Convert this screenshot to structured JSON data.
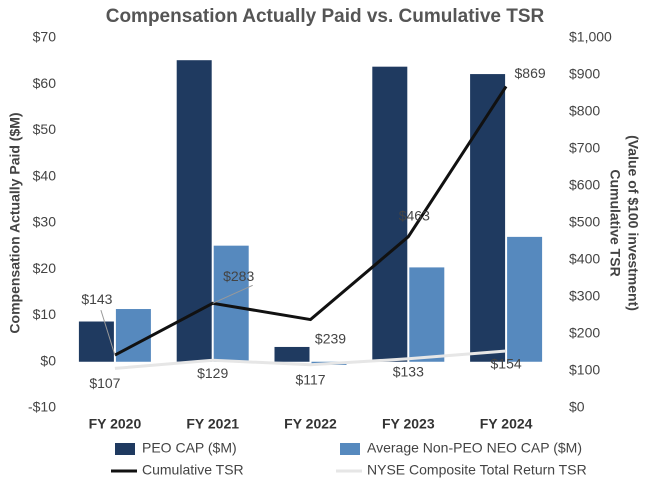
{
  "chart_data": {
    "type": "bar",
    "title": "Compensation Actually Paid vs. Cumulative TSR",
    "ylabel": "Compensation Actually Paid ($M)",
    "y2label": [
      "Cumulative TSR",
      "(Value of $100 investment)"
    ],
    "categories": [
      "FY 2020",
      "FY 2021",
      "FY 2022",
      "FY 2023",
      "FY 2024"
    ],
    "series": [
      {
        "name": "PEO CAP ($M)",
        "type": "bar",
        "color": "#1f3a60",
        "values": [
          8.7,
          65.2,
          3.2,
          63.8,
          62.2
        ]
      },
      {
        "name": "Average Non-PEO NEO CAP ($M)",
        "type": "bar",
        "color": "#5689be",
        "values": [
          11.4,
          25.1,
          -0.7,
          20.4,
          27.0
        ]
      },
      {
        "name": "Cumulative TSR",
        "type": "line",
        "axis": "y2",
        "color": "#111111",
        "values": [
          143,
          283,
          239,
          463,
          869
        ],
        "value_labels": [
          "$143",
          "$283",
          "$239",
          "$463",
          "$869"
        ]
      },
      {
        "name": "NYSE Composite Total Return TSR",
        "type": "line",
        "axis": "y2",
        "color": "#e6e6e6",
        "values": [
          107,
          129,
          117,
          133,
          154
        ],
        "value_labels": [
          "$107",
          "$129",
          "$117",
          "$133",
          "$154"
        ]
      }
    ],
    "ylim": [
      -10,
      70
    ],
    "yticks": [
      {
        "value": -10,
        "label": "-$10"
      },
      {
        "value": 0,
        "label": "$0"
      },
      {
        "value": 10,
        "label": "$10"
      },
      {
        "value": 20,
        "label": "$20"
      },
      {
        "value": 30,
        "label": "$30"
      },
      {
        "value": 40,
        "label": "$40"
      },
      {
        "value": 50,
        "label": "$50"
      },
      {
        "value": 60,
        "label": "$60"
      },
      {
        "value": 70,
        "label": "$70"
      }
    ],
    "y2lim": [
      0,
      1000
    ],
    "y2ticks": [
      {
        "value": 0,
        "label": "$0"
      },
      {
        "value": 100,
        "label": "$100"
      },
      {
        "value": 200,
        "label": "$200"
      },
      {
        "value": 300,
        "label": "$300"
      },
      {
        "value": 400,
        "label": "$400"
      },
      {
        "value": 500,
        "label": "$500"
      },
      {
        "value": 600,
        "label": "$600"
      },
      {
        "value": 700,
        "label": "$700"
      },
      {
        "value": 800,
        "label": "$800"
      },
      {
        "value": 900,
        "label": "$900"
      },
      {
        "value": 1000,
        "label": "$1,000"
      }
    ],
    "grid": false
  }
}
